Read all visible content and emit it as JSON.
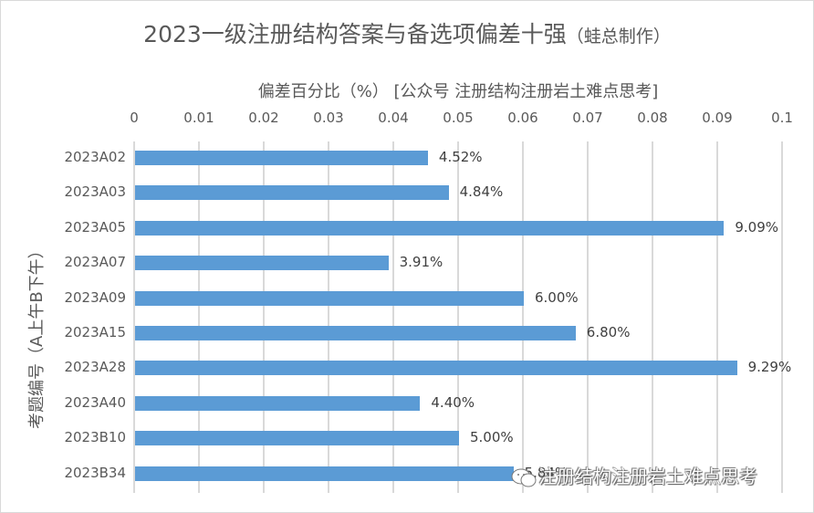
{
  "chart": {
    "title": "2023一级注册结构答案与备选项偏差十强",
    "title_suffix": "（蛙总制作）",
    "xlabel": "偏差百分比（%）  [公众号 注册结构注册岩土难点思考]",
    "ylabel": "考题编号（A上午B下午）",
    "ticks": [
      "0",
      "0.01",
      "0.02",
      "0.03",
      "0.04",
      "0.05",
      "0.06",
      "0.07",
      "0.08",
      "0.09",
      "0.1"
    ],
    "categories": [
      "2023A02",
      "2023A03",
      "2023A05",
      "2023A07",
      "2023A09",
      "2023A15",
      "2023A28",
      "2023A40",
      "2023B10",
      "2023B34"
    ],
    "labels": [
      "4.52%",
      "4.84%",
      "9.09%",
      "3.91%",
      "6.00%",
      "6.80%",
      "9.29%",
      "4.40%",
      "5.00%",
      "5.84%"
    ],
    "bar_color": "#5b9bd5",
    "watermark": "注册结构注册岩土难点思考"
  },
  "chart_data": {
    "type": "bar",
    "orientation": "horizontal",
    "title": "2023一级注册结构答案与备选项偏差十强（蛙总制作）",
    "xlabel": "偏差百分比（%）  [公众号 注册结构注册岩土难点思考]",
    "ylabel": "考题编号（A上午B下午）",
    "categories": [
      "2023A02",
      "2023A03",
      "2023A05",
      "2023A07",
      "2023A09",
      "2023A15",
      "2023A28",
      "2023A40",
      "2023B10",
      "2023B34"
    ],
    "values": [
      0.0452,
      0.0484,
      0.0909,
      0.0391,
      0.06,
      0.068,
      0.0929,
      0.044,
      0.05,
      0.0584
    ],
    "data_labels": [
      "4.52%",
      "4.84%",
      "9.09%",
      "3.91%",
      "6.00%",
      "6.80%",
      "9.29%",
      "4.40%",
      "5.00%",
      "5.84%"
    ],
    "xlim": [
      0,
      0.1
    ],
    "xticks": [
      0,
      0.01,
      0.02,
      0.03,
      0.04,
      0.05,
      0.06,
      0.07,
      0.08,
      0.09,
      0.1
    ],
    "x_axis_position": "top",
    "grid": "vertical",
    "legend": "none",
    "color": "#5b9bd5"
  }
}
